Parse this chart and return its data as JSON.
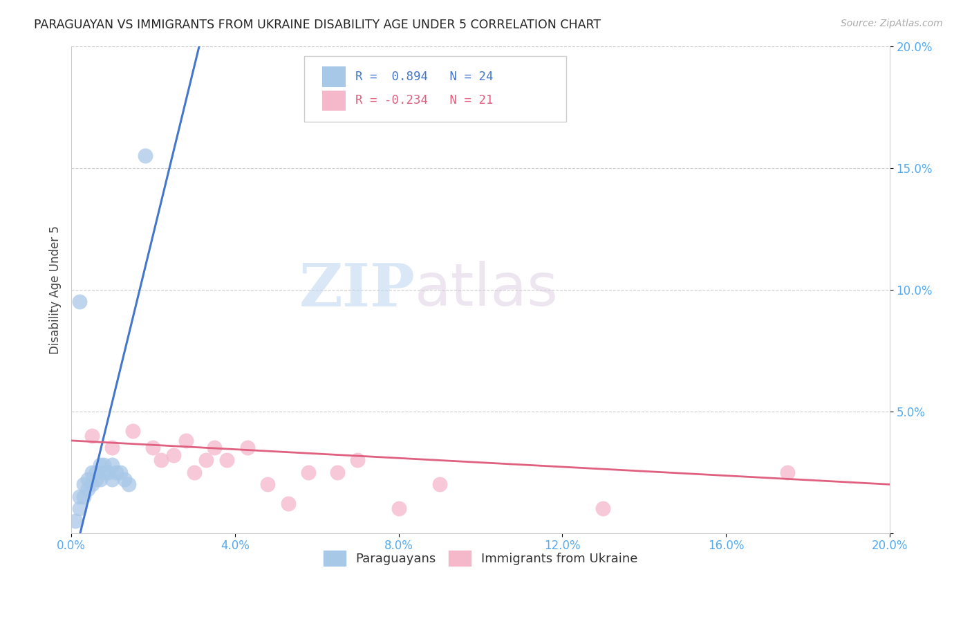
{
  "title": "PARAGUAYAN VS IMMIGRANTS FROM UKRAINE DISABILITY AGE UNDER 5 CORRELATION CHART",
  "source": "Source: ZipAtlas.com",
  "ylabel": "Disability Age Under 5",
  "xlim": [
    0.0,
    0.2
  ],
  "ylim": [
    0.0,
    0.2
  ],
  "x_ticks": [
    0.0,
    0.04,
    0.08,
    0.12,
    0.16,
    0.2
  ],
  "y_ticks": [
    0.0,
    0.05,
    0.1,
    0.15,
    0.2
  ],
  "y_tick_labels": [
    "",
    "5.0%",
    "10.0%",
    "15.0%",
    "20.0%"
  ],
  "x_tick_labels": [
    "0.0%",
    "4.0%",
    "8.0%",
    "12.0%",
    "16.0%",
    "20.0%"
  ],
  "paraguayan_color": "#a8c8e8",
  "ukraine_color": "#f5b8cb",
  "blue_line_color": "#4477cc",
  "pink_line_color": "#e06080",
  "legend_blue_label": "Paraguayans",
  "legend_pink_label": "Immigrants from Ukraine",
  "R_blue": 0.894,
  "N_blue": 24,
  "R_pink": -0.234,
  "N_pink": 21,
  "paraguayan_x": [
    0.001,
    0.002,
    0.002,
    0.003,
    0.003,
    0.004,
    0.004,
    0.005,
    0.005,
    0.006,
    0.006,
    0.007,
    0.007,
    0.008,
    0.008,
    0.009,
    0.01,
    0.01,
    0.011,
    0.012,
    0.013,
    0.014,
    0.002,
    0.018
  ],
  "paraguayan_y": [
    0.005,
    0.01,
    0.015,
    0.015,
    0.02,
    0.018,
    0.022,
    0.02,
    0.025,
    0.022,
    0.025,
    0.022,
    0.028,
    0.025,
    0.028,
    0.025,
    0.022,
    0.028,
    0.025,
    0.025,
    0.022,
    0.02,
    0.095,
    0.155
  ],
  "ukraine_x": [
    0.005,
    0.01,
    0.015,
    0.02,
    0.022,
    0.025,
    0.028,
    0.03,
    0.033,
    0.035,
    0.038,
    0.043,
    0.048,
    0.053,
    0.058,
    0.065,
    0.07,
    0.08,
    0.09,
    0.13,
    0.175
  ],
  "ukraine_y": [
    0.04,
    0.035,
    0.042,
    0.035,
    0.03,
    0.032,
    0.038,
    0.025,
    0.03,
    0.035,
    0.03,
    0.035,
    0.02,
    0.012,
    0.025,
    0.025,
    0.03,
    0.01,
    0.02,
    0.01,
    0.025
  ],
  "blue_line_x": [
    0.0,
    0.032
  ],
  "blue_line_y": [
    -0.015,
    0.205
  ],
  "pink_line_x": [
    0.0,
    0.2
  ],
  "pink_line_y": [
    0.038,
    0.02
  ],
  "watermark_zip": "ZIP",
  "watermark_atlas": "atlas",
  "background_color": "#ffffff",
  "grid_color": "#cccccc",
  "tick_color": "#55aaee"
}
